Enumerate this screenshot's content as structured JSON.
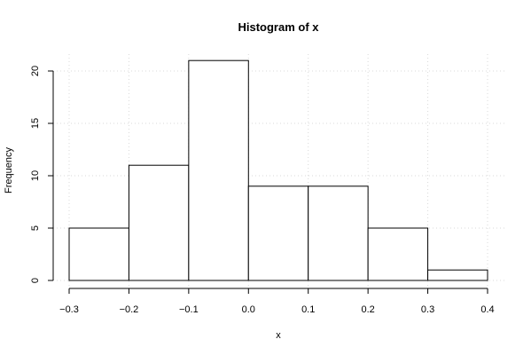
{
  "chart_data": {
    "type": "bar",
    "title": "Histogram of x",
    "xlabel": "x",
    "ylabel": "Frequency",
    "bins": [
      {
        "start": -0.3,
        "end": -0.2,
        "value": 5
      },
      {
        "start": -0.2,
        "end": -0.1,
        "value": 11
      },
      {
        "start": -0.1,
        "end": 0.0,
        "value": 21
      },
      {
        "start": 0.0,
        "end": 0.1,
        "value": 9
      },
      {
        "start": 0.1,
        "end": 0.2,
        "value": 9
      },
      {
        "start": 0.2,
        "end": 0.3,
        "value": 5
      },
      {
        "start": 0.3,
        "end": 0.4,
        "value": 1
      }
    ],
    "x_ticks": [
      -0.3,
      -0.2,
      -0.1,
      0.0,
      0.1,
      0.2,
      0.3,
      0.4
    ],
    "x_tick_labels": [
      "−0.3",
      "−0.2",
      "−0.1",
      "0.0",
      "0.1",
      "0.2",
      "0.3",
      "0.4"
    ],
    "y_ticks": [
      0,
      5,
      10,
      15,
      20
    ],
    "y_tick_labels": [
      "0",
      "5",
      "10",
      "15",
      "20"
    ],
    "xlim": [
      -0.3,
      0.4
    ],
    "ylim": [
      0,
      21
    ],
    "grid": true
  }
}
